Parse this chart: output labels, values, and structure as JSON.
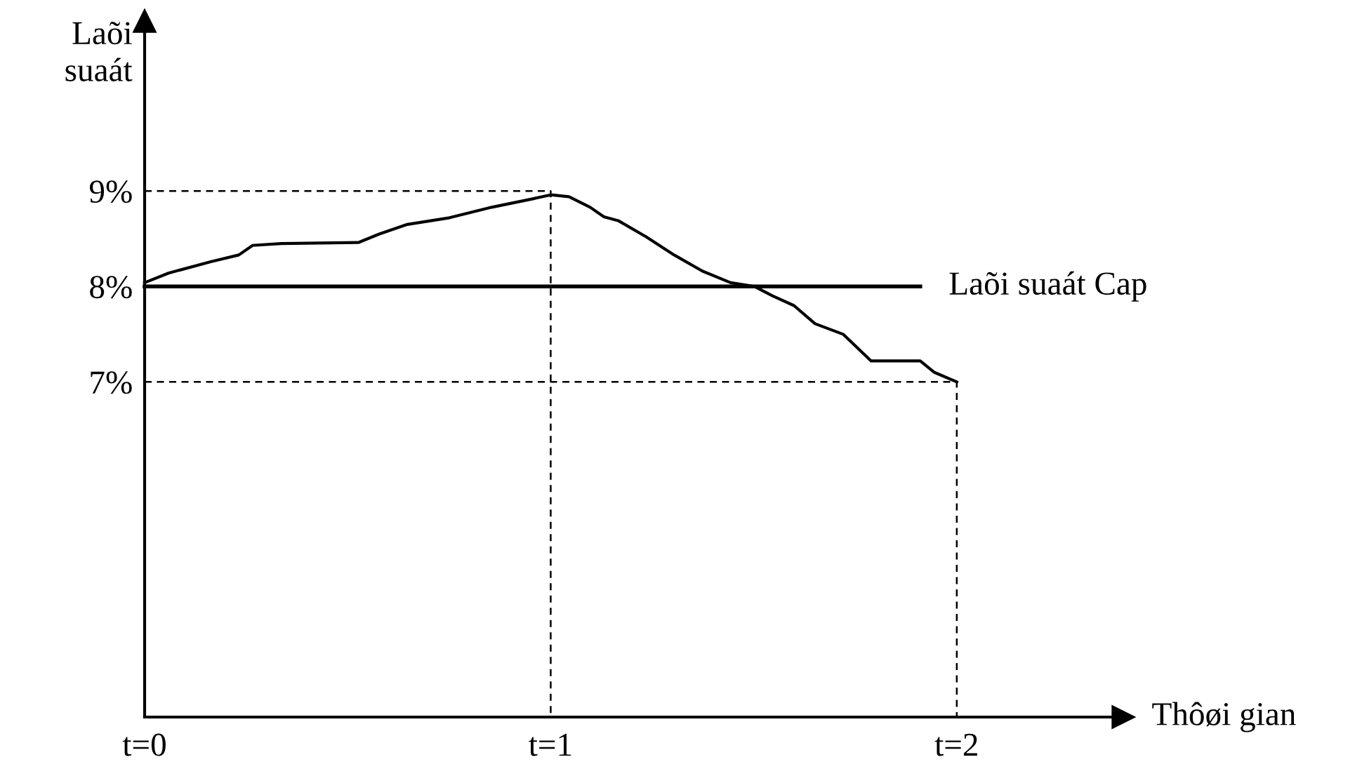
{
  "chart_data": {
    "type": "line",
    "xlabel": "Thôøi gian",
    "ylabel": "Laõi\nsuaát",
    "xlim": [
      0,
      2.41
    ],
    "ylim": [
      3.49,
      10.78
    ],
    "xticks": [
      {
        "value": 0,
        "label": "t=0"
      },
      {
        "value": 1,
        "label": "t=1"
      },
      {
        "value": 2,
        "label": "t=2"
      }
    ],
    "yticks": [
      {
        "value": 7,
        "label": "7%"
      },
      {
        "value": 8,
        "label": "8%"
      },
      {
        "value": 9,
        "label": "9%"
      }
    ],
    "grid": false,
    "legend": false,
    "marker": "none",
    "series": [
      {
        "color": "#000000",
        "line_style": "solid",
        "x": [
          0,
          0.059,
          0.163,
          0.232,
          0.266,
          0.336,
          0.526,
          0.578,
          0.647,
          0.751,
          0.855,
          0.958,
          1.0,
          1.045,
          1.097,
          1.131,
          1.166,
          1.235,
          1.304,
          1.374,
          1.443,
          1.502,
          1.547,
          1.599,
          1.651,
          1.72,
          1.789,
          1.858,
          1.91,
          1.945,
          2.0
        ],
        "values": [
          8.04,
          8.14,
          8.26,
          8.33,
          8.43,
          8.45,
          8.46,
          8.55,
          8.65,
          8.72,
          8.83,
          8.92,
          8.96,
          8.94,
          8.83,
          8.73,
          8.69,
          8.52,
          8.33,
          8.16,
          8.04,
          8.0,
          7.9,
          7.8,
          7.61,
          7.5,
          7.22,
          7.22,
          7.22,
          7.1,
          7.0
        ]
      },
      {
        "name": "Laõi suaát Cap",
        "color": "#000000",
        "line_style": "solid",
        "x": [
          0,
          1.91
        ],
        "values": [
          8,
          8
        ]
      },
      {
        "color": "#000000",
        "line_style": "dashed",
        "x": [
          0,
          1,
          1
        ],
        "values": [
          9,
          9,
          3.49
        ]
      },
      {
        "color": "#000000",
        "line_style": "dashed",
        "x": [
          0,
          2,
          2
        ],
        "values": [
          7,
          7,
          3.49
        ]
      }
    ]
  }
}
